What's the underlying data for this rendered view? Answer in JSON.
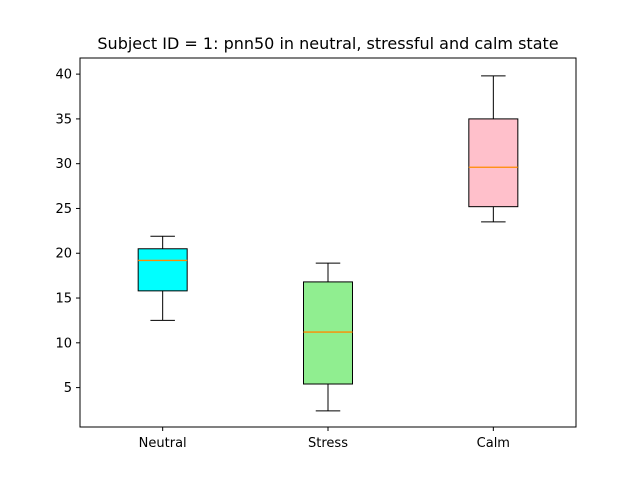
{
  "chart_data": {
    "type": "box",
    "title": "Subject ID = 1: pnn50 in neutral, stressful and calm state",
    "xlabel": "",
    "ylabel": "",
    "categories": [
      "Neutral",
      "Stress",
      "Calm"
    ],
    "ylim": [
      0.6,
      41.8
    ],
    "yticks": [
      5,
      10,
      15,
      20,
      25,
      30,
      35,
      40
    ],
    "grid": false,
    "boxes": [
      {
        "category": "Neutral",
        "whisker_low": 12.5,
        "q1": 15.8,
        "median": 19.2,
        "q3": 20.5,
        "whisker_high": 21.9,
        "fill": "#00ffff"
      },
      {
        "category": "Stress",
        "whisker_low": 2.4,
        "q1": 5.4,
        "median": 11.2,
        "q3": 16.8,
        "whisker_high": 18.9,
        "fill": "#90ee90"
      },
      {
        "category": "Calm",
        "whisker_low": 23.5,
        "q1": 25.2,
        "median": 29.6,
        "q3": 35.0,
        "whisker_high": 39.8,
        "fill": "#ffc0cb"
      }
    ],
    "median_color": "#ff8c00"
  }
}
